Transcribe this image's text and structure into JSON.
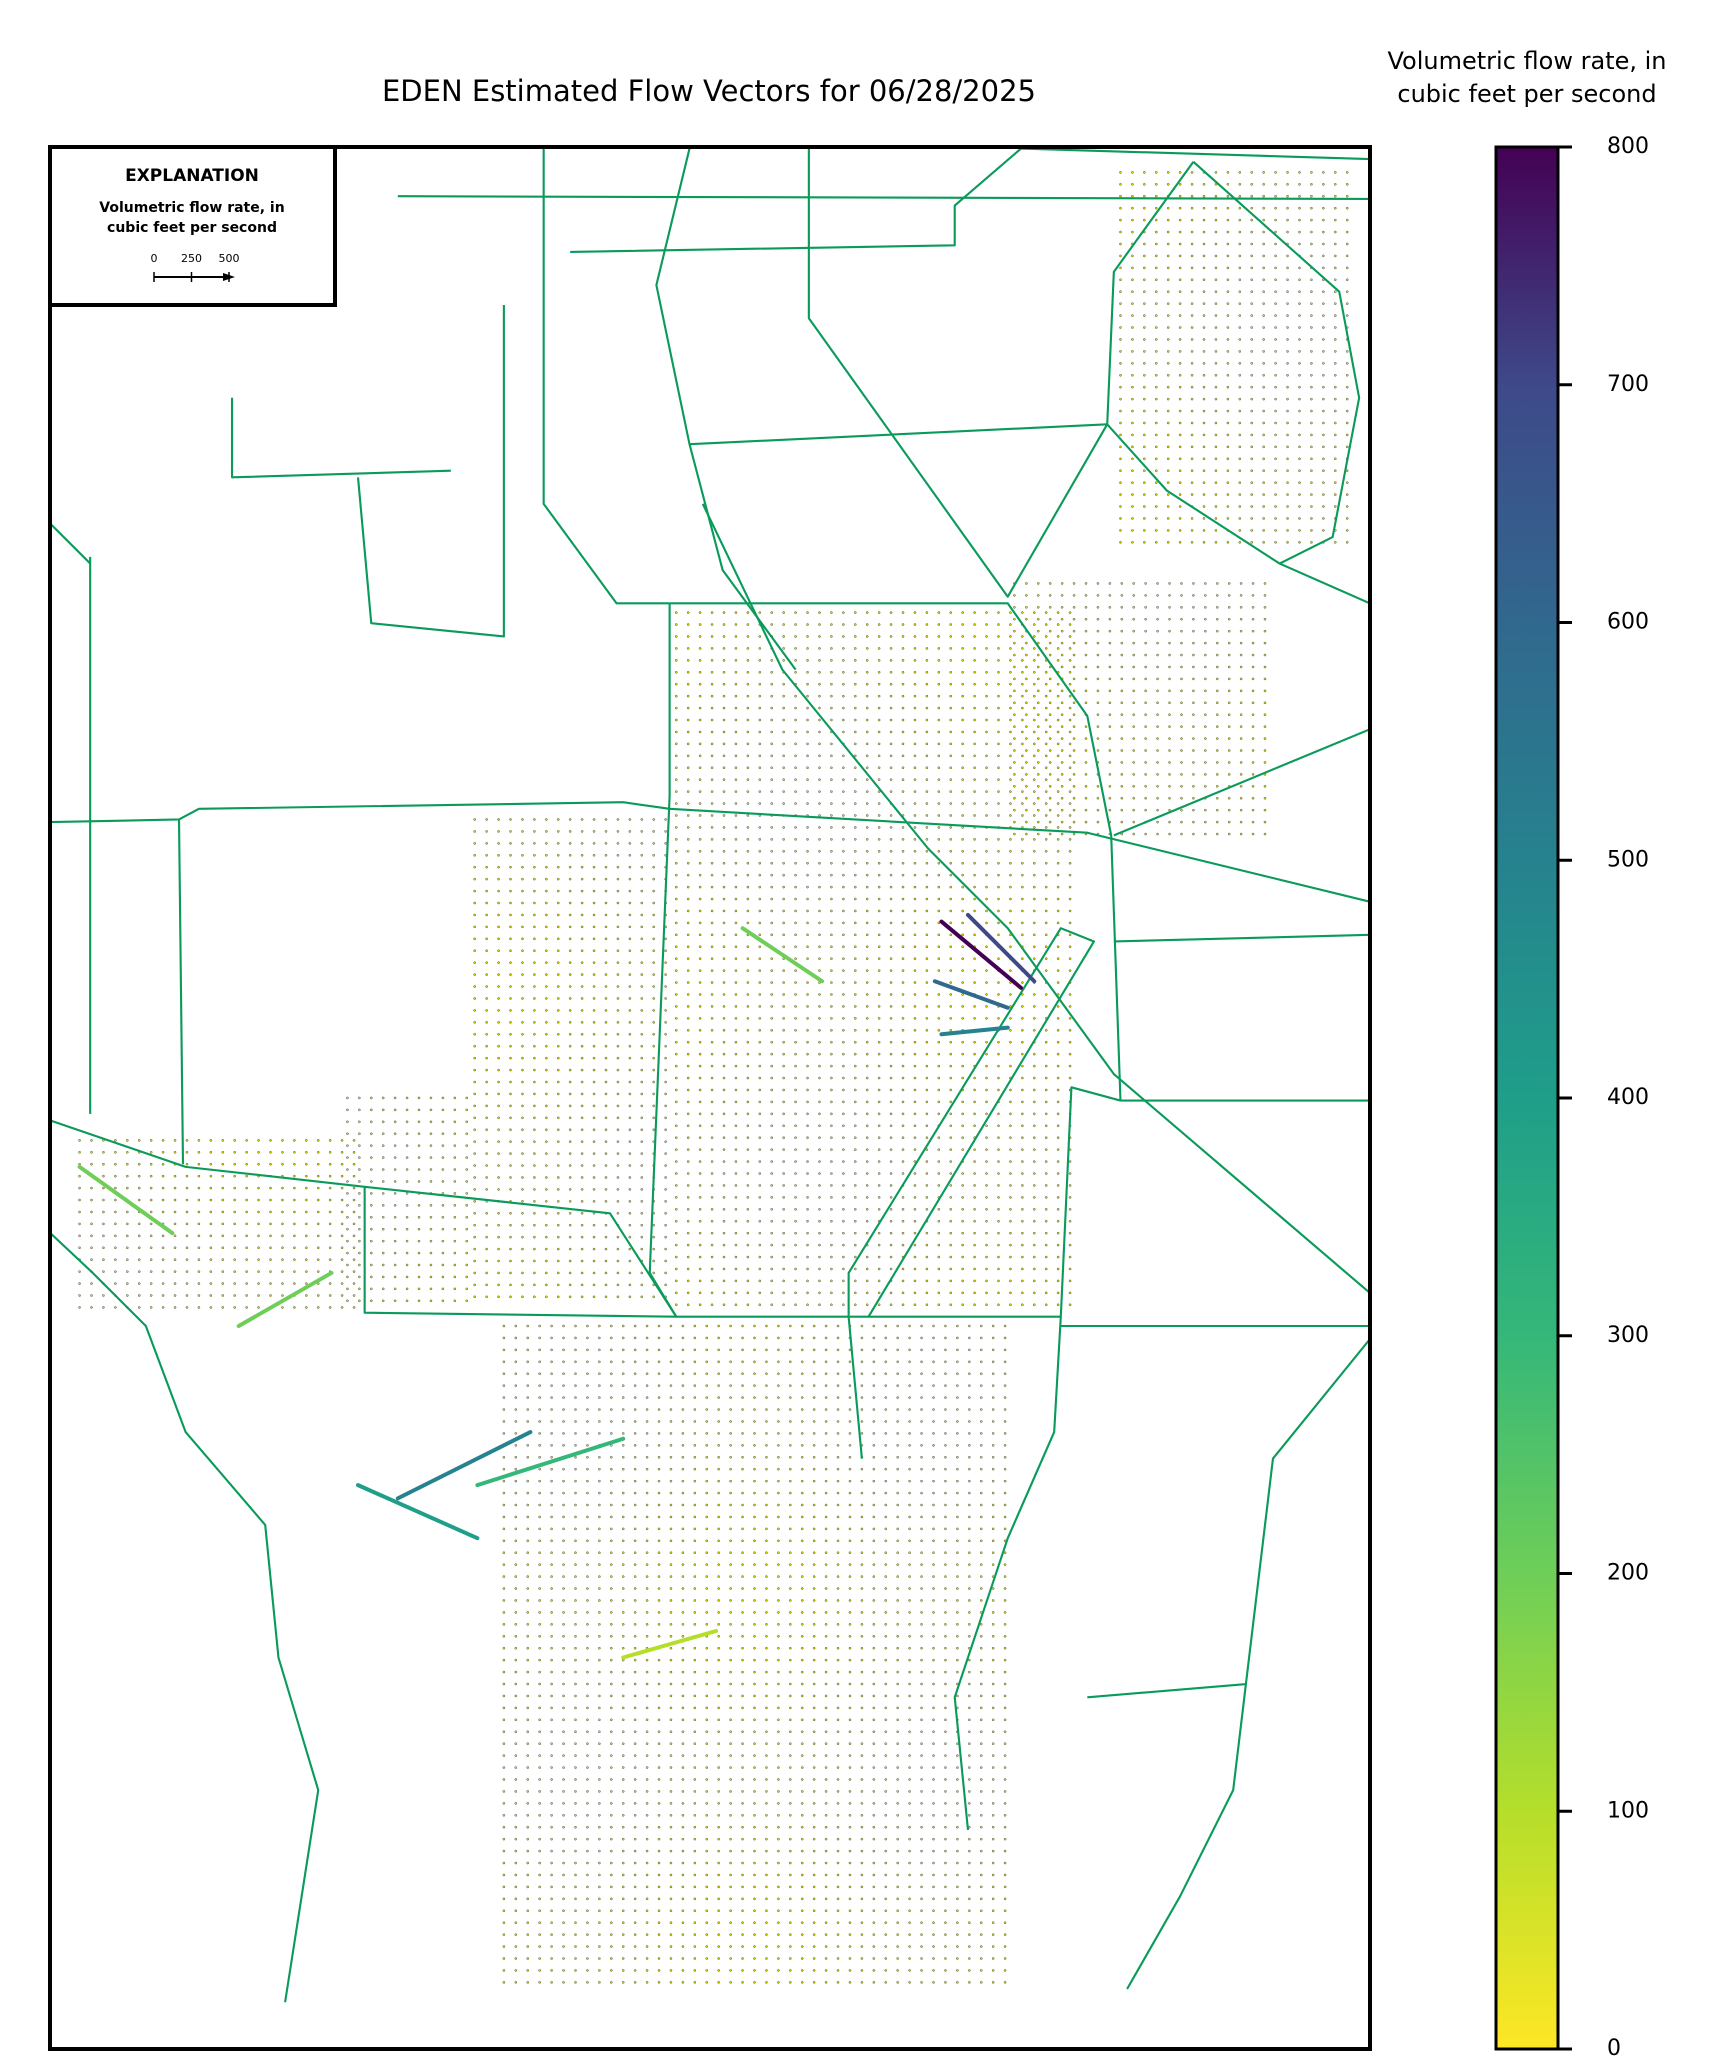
{
  "title": "EDEN Estimated Flow Vectors for 06/28/2025",
  "colorbar": {
    "label_lines": [
      "Volumetric flow rate, in",
      "cubic feet per second"
    ],
    "lim": [
      0,
      800
    ],
    "ticks": [
      0,
      100,
      200,
      300,
      400,
      500,
      600,
      700,
      800
    ]
  },
  "explanation": {
    "heading": "EXPLANATION",
    "lines": [
      "Volumetric flow rate, in",
      "cubic feet per second"
    ],
    "scale_ticks": [
      0,
      250,
      500
    ]
  }
}
